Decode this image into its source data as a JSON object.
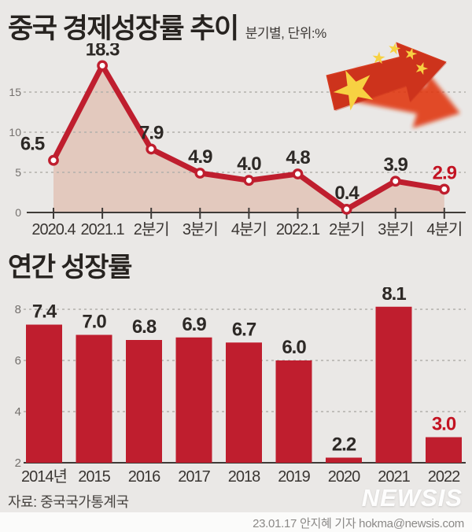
{
  "header": {
    "title": "중국 경제성장률 추이",
    "subtitle": "분기별, 단위:%"
  },
  "sections": {
    "annual_title": "연간 성장률"
  },
  "chart_data": [
    {
      "type": "line",
      "title": "중국 경제성장률 추이",
      "subtitle": "분기별, 단위:%",
      "x": [
        "2020.4",
        "2021.1",
        "2분기",
        "3분기",
        "4분기",
        "2022.1",
        "2분기",
        "3분기",
        "4분기"
      ],
      "values": [
        6.5,
        18.3,
        7.9,
        4.9,
        4.0,
        4.8,
        0.4,
        3.9,
        2.9
      ],
      "value_labels": [
        "6.5",
        "18.3",
        "7.9",
        "4.9",
        "4.0",
        "4.8",
        "0.4",
        "3.9",
        "2.9"
      ],
      "yticks": [
        0,
        5,
        10,
        15
      ],
      "ylim": [
        0,
        19.5
      ],
      "grid": true,
      "area_fill": true,
      "markers": true,
      "highlight_last": true,
      "legend": "none"
    },
    {
      "type": "bar",
      "title": "연간 성장률",
      "categories": [
        "2014년",
        "2015",
        "2016",
        "2017",
        "2018",
        "2019",
        "2020",
        "2021",
        "2022"
      ],
      "values": [
        7.4,
        7.0,
        6.8,
        6.9,
        6.7,
        6.0,
        2.2,
        8.1,
        3.0
      ],
      "value_labels": [
        "7.4",
        "7.0",
        "6.8",
        "6.9",
        "6.7",
        "6.0",
        "2.2",
        "8.1",
        "3.0"
      ],
      "yticks": [
        2,
        4,
        6,
        8
      ],
      "ylim": [
        2,
        8.6
      ],
      "baseline": 2,
      "grid": true,
      "highlight_last": true,
      "legend": "none"
    }
  ],
  "colors": {
    "background": "#eae8e6",
    "accent_red": "#bf1e2e",
    "highlight_red": "#c31322",
    "area_fill": "#e3c9be",
    "label_dark": "#2d2926",
    "axis_line": "#3f3b38",
    "axis_text": "#74706d",
    "tick_text": "#3a3633",
    "grid_line": "#b2afac",
    "flag_red": "#d53a1f",
    "flag_red_deep": "#c02717",
    "star_yellow": "#f7d142",
    "shadow_red": "#e0350e"
  },
  "footer": {
    "source": "자료: 중국국가통계국",
    "logo": "NEWSIS",
    "credit": "23.01.17 안지혜 기자 hokma@newsis.com"
  }
}
